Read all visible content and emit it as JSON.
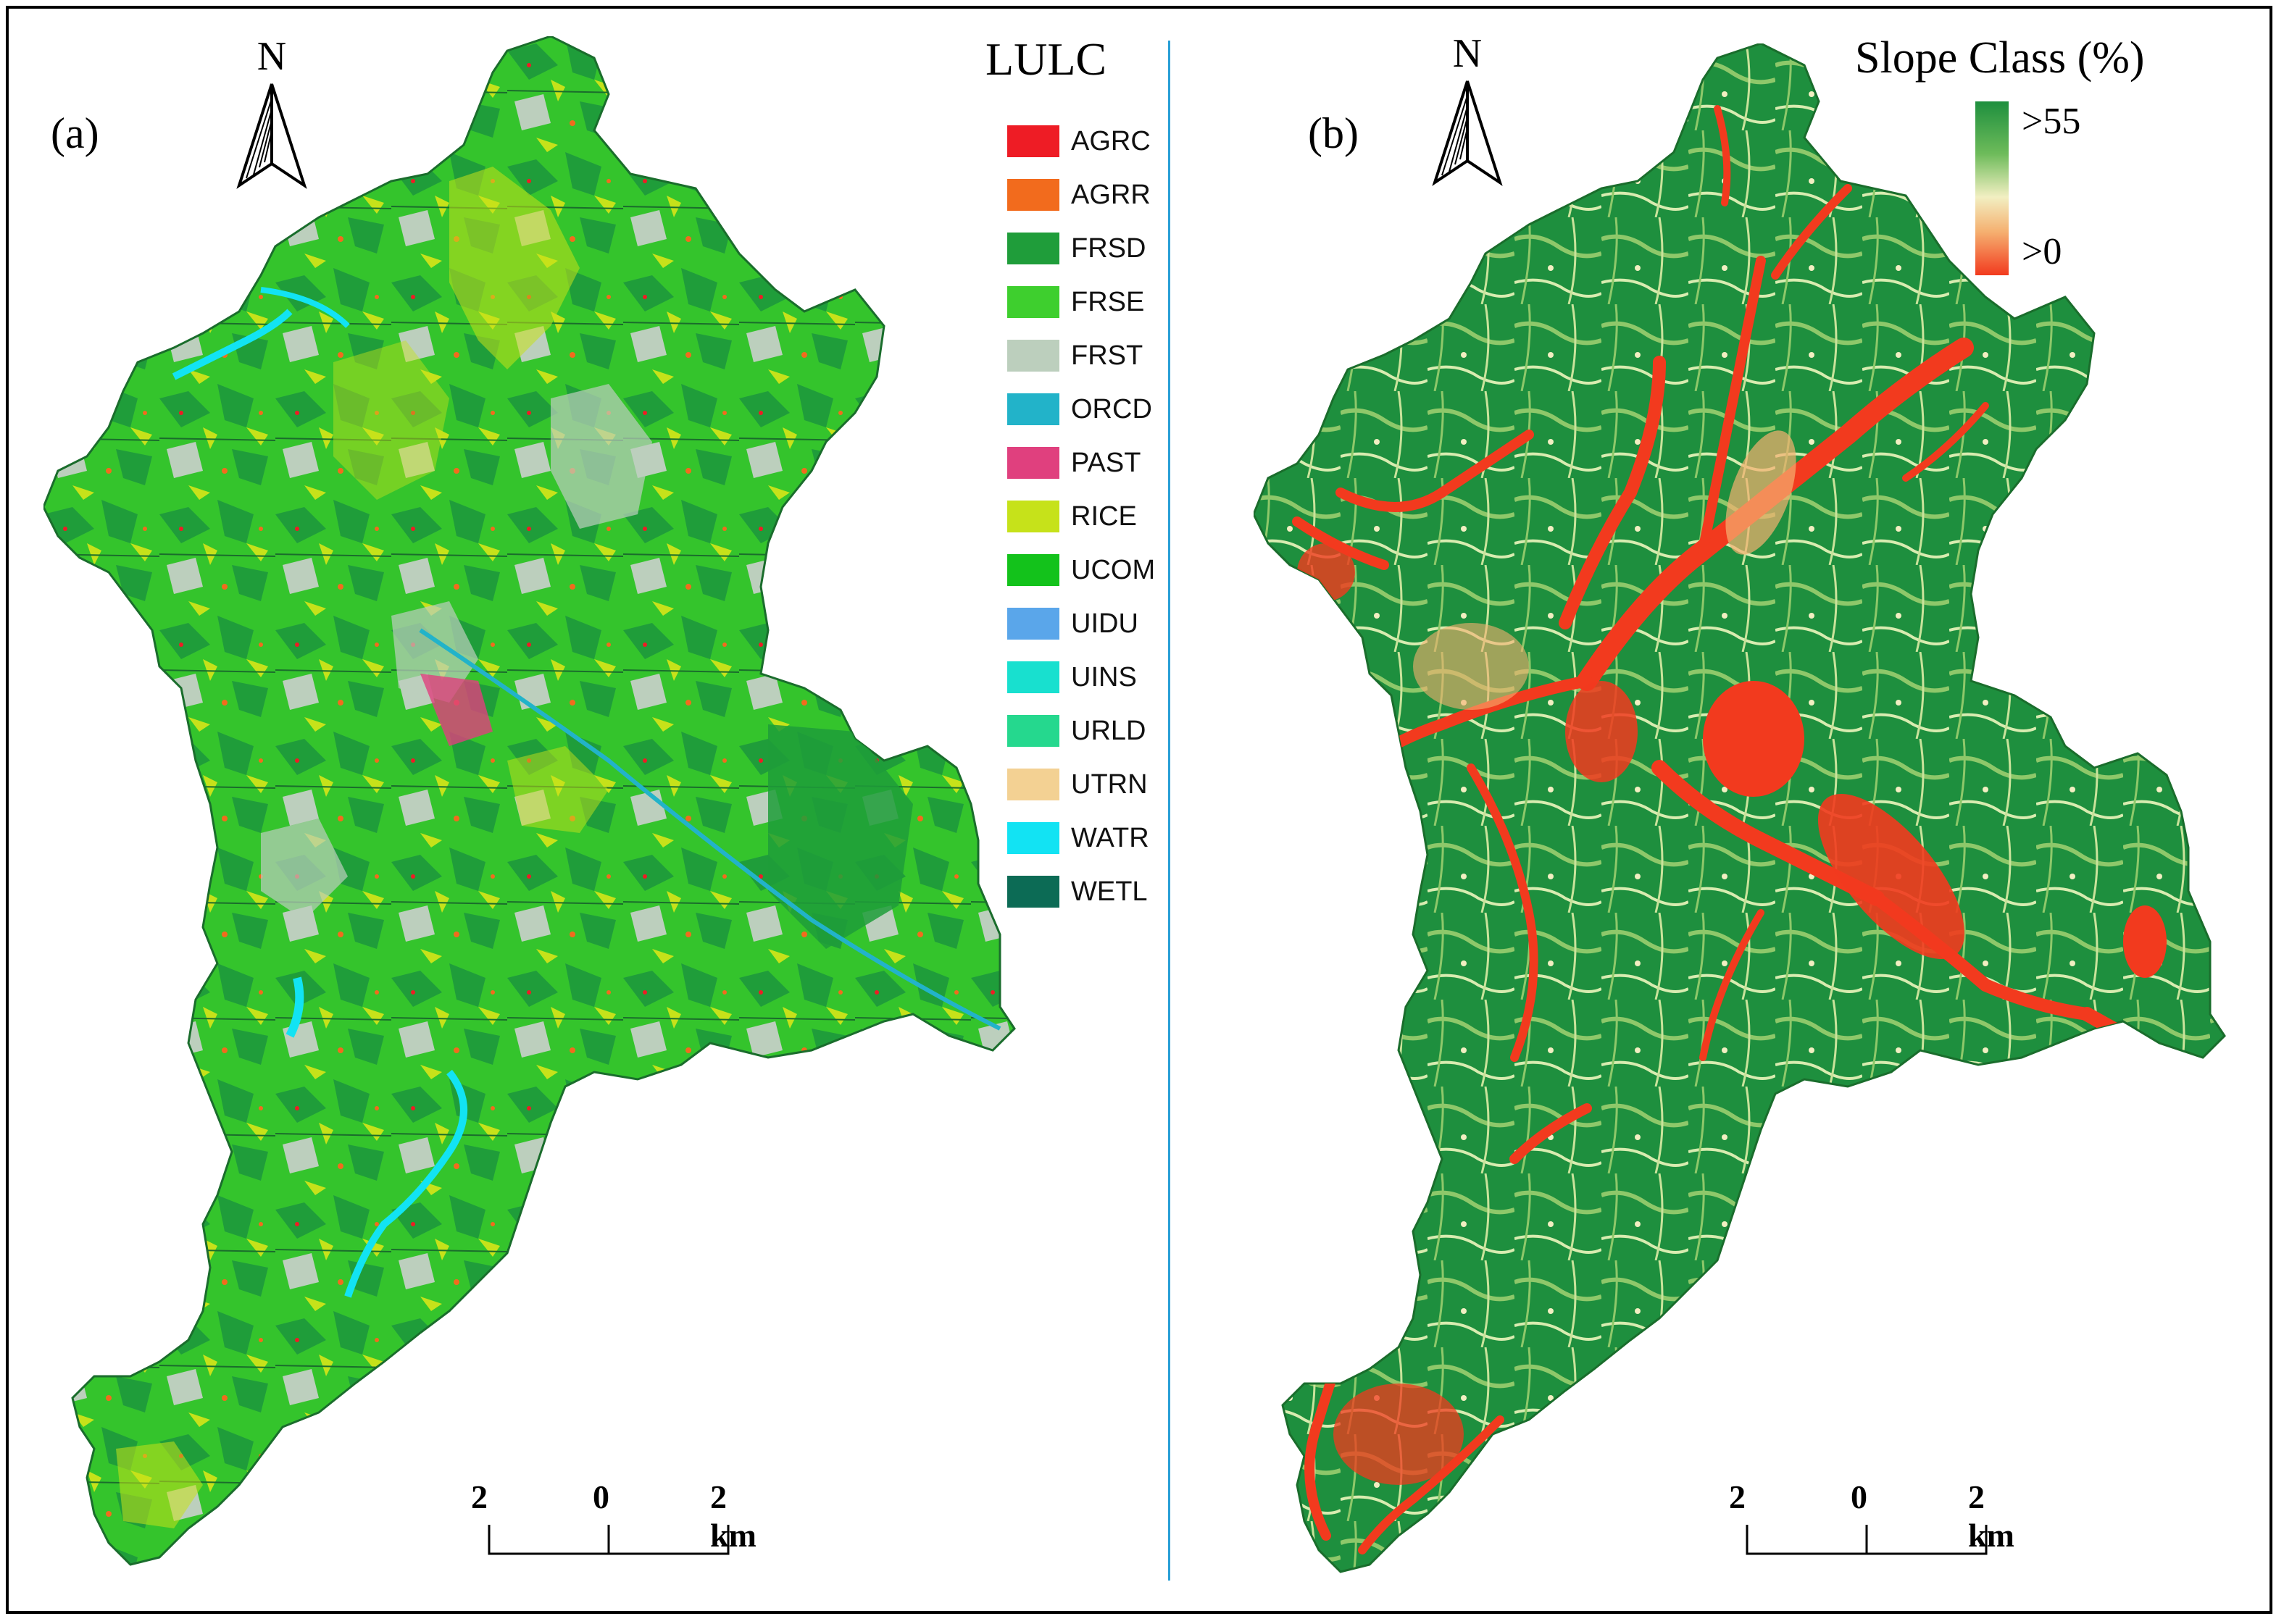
{
  "panel_a": {
    "label": "(a)",
    "north": "N",
    "legend_title": "LULC",
    "legend": [
      {
        "code": "AGRC",
        "color": "#ee1c25"
      },
      {
        "code": "AGRR",
        "color": "#f26b1d"
      },
      {
        "code": "FRSD",
        "color": "#1f9d3a"
      },
      {
        "code": "FRSE",
        "color": "#3ecf2e"
      },
      {
        "code": "FRST",
        "color": "#bccfbd"
      },
      {
        "code": "ORCD",
        "color": "#22b3c9"
      },
      {
        "code": "PAST",
        "color": "#e0407e"
      },
      {
        "code": "RICE",
        "color": "#c6e21a"
      },
      {
        "code": "UCOM",
        "color": "#13c21b"
      },
      {
        "code": "UIDU",
        "color": "#5aa6ea"
      },
      {
        "code": "UINS",
        "color": "#18e0cf"
      },
      {
        "code": "URLD",
        "color": "#25d88e"
      },
      {
        "code": "UTRN",
        "color": "#f3d193"
      },
      {
        "code": "WATR",
        "color": "#12e3f3"
      },
      {
        "code": "WETL",
        "color": "#0c6b55"
      }
    ],
    "scale": {
      "left": "2",
      "mid": "0",
      "right": "2 km"
    }
  },
  "panel_b": {
    "label": "(b)",
    "north": "N",
    "legend_title": "Slope Class (%)",
    "ramp_high": ">55",
    "ramp_low": ">0",
    "ramp_colors": [
      "#1e8f3e",
      "#f2efc2",
      "#f23a1e"
    ],
    "scale": {
      "left": "2",
      "mid": "0",
      "right": "2 km"
    }
  }
}
